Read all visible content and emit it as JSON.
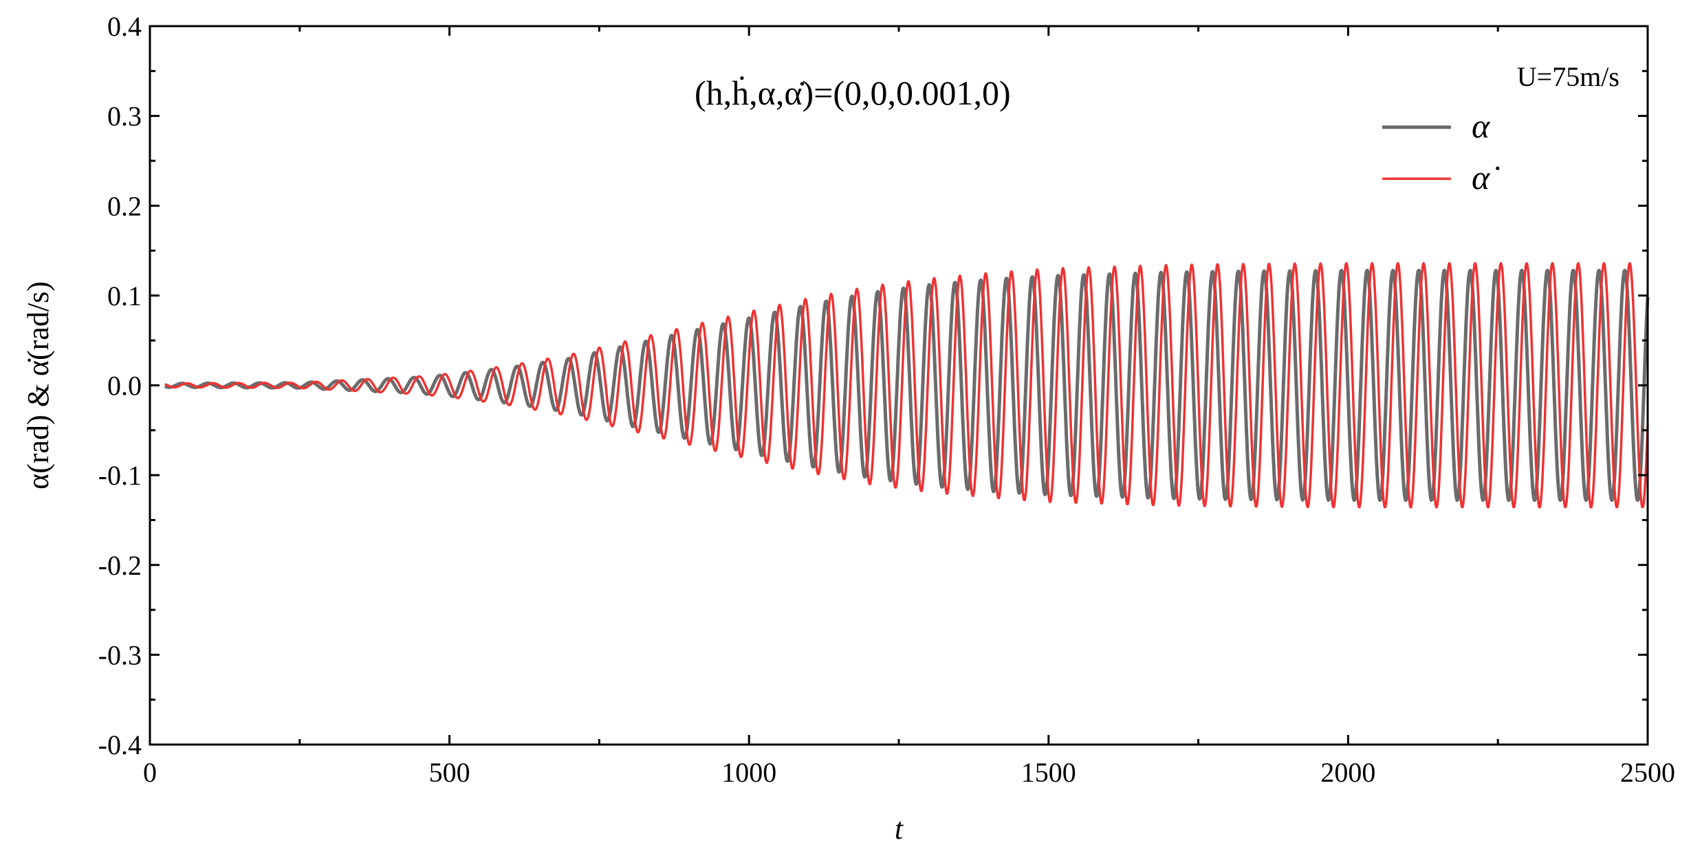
{
  "chart_data": {
    "type": "line",
    "xlabel": "t",
    "ylabel": "α(rad) & α̇(rad/s)",
    "xlim": [
      0,
      2500
    ],
    "ylim": [
      -0.4,
      0.4
    ],
    "xticks": [
      "0",
      "500",
      "1000",
      "1500",
      "2000",
      "2500"
    ],
    "yticks": [
      "0.4",
      "0.3",
      "0.2",
      "0.1",
      "0.0",
      "-0.1",
      "-0.2",
      "-0.3",
      "-0.4"
    ],
    "annotation": "(h,ḣ,α,α̇)=(0,0,0.001,0)",
    "legend_title": "U=75m/s",
    "legend_position": "top-right",
    "grid": false,
    "oscillation_period": 43,
    "series": [
      {
        "name": "α",
        "color": "#6b6b6b",
        "envelope": {
          "t": [
            0,
            250,
            450,
            500,
            600,
            700,
            800,
            900,
            1000,
            1100,
            1200,
            1300,
            1400,
            1500,
            1600,
            1700,
            1800,
            2000,
            2200,
            2500
          ],
          "amplitude": [
            0.002,
            0.003,
            0.009,
            0.012,
            0.02,
            0.03,
            0.045,
            0.06,
            0.075,
            0.09,
            0.103,
            0.112,
            0.118,
            0.122,
            0.124,
            0.126,
            0.127,
            0.128,
            0.128,
            0.128
          ]
        }
      },
      {
        "name": "α̇",
        "color": "#ee3333",
        "envelope": {
          "t": [
            0,
            250,
            450,
            500,
            600,
            700,
            800,
            900,
            1000,
            1100,
            1200,
            1300,
            1400,
            1500,
            1600,
            1700,
            1800,
            2000,
            2200,
            2500
          ],
          "amplitude": [
            0.002,
            0.003,
            0.01,
            0.013,
            0.022,
            0.034,
            0.05,
            0.066,
            0.082,
            0.097,
            0.11,
            0.119,
            0.125,
            0.13,
            0.132,
            0.134,
            0.135,
            0.136,
            0.136,
            0.136
          ]
        }
      }
    ]
  }
}
